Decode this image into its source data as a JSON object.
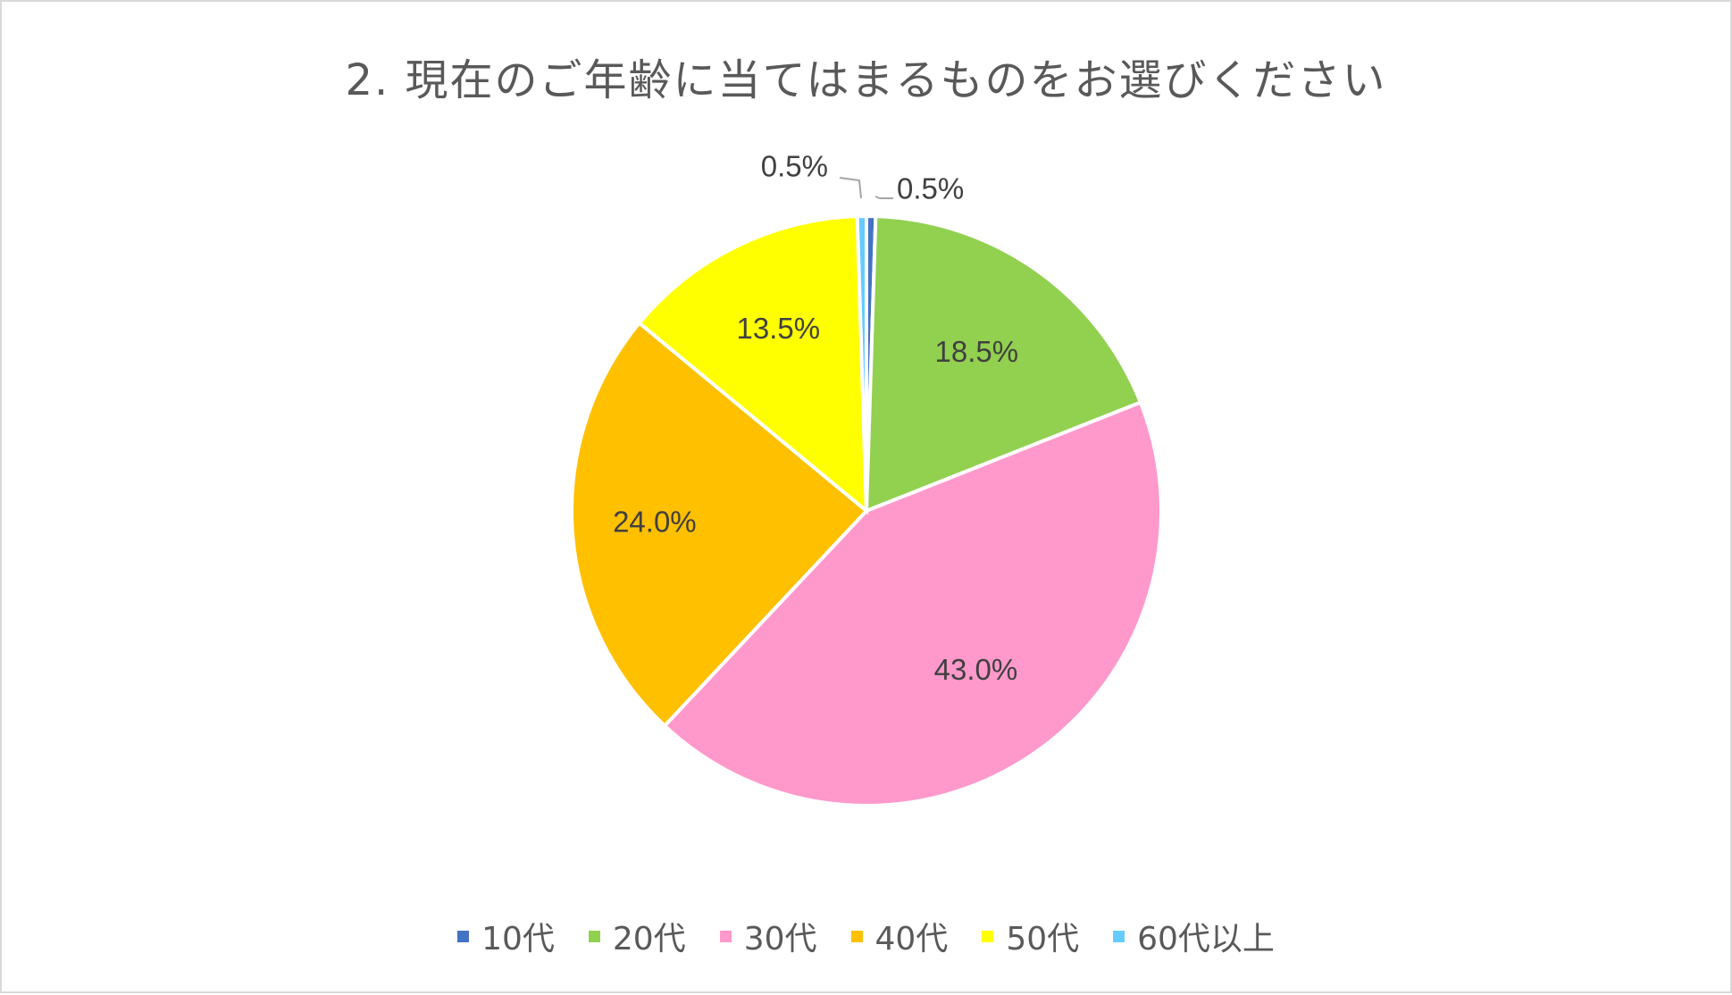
{
  "chart_data": {
    "type": "pie",
    "title": "2. 現在のご年齢に当てはまるものをお選びください",
    "categories": [
      "10代",
      "20代",
      "30代",
      "40代",
      "50代",
      "60代以上"
    ],
    "values": [
      0.5,
      18.5,
      43.0,
      24.0,
      13.5,
      0.5
    ],
    "labels": [
      "0.5%",
      "18.5%",
      "43.0%",
      "24.0%",
      "13.5%",
      "0.5%"
    ],
    "unit": "%",
    "colors": [
      "#4472c4",
      "#92d050",
      "#ff99cc",
      "#ffc000",
      "#ffff00",
      "#66ccff"
    ],
    "legend_position": "bottom"
  }
}
